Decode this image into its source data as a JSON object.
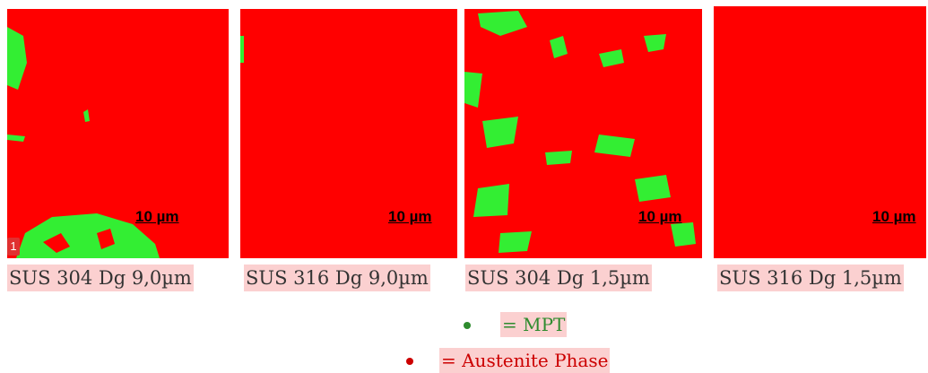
{
  "badge": "1",
  "panels": [
    {
      "scale_bar": "10 µm",
      "caption": "SUS 304 Dg 9,0µm"
    },
    {
      "scale_bar": "10 µm",
      "caption": "SUS 316 Dg 9,0µm"
    },
    {
      "scale_bar": "10 µm",
      "caption": "SUS 304 Dg 1,5µm"
    },
    {
      "scale_bar": "10 µm",
      "caption": "SUS 316 Dg 1,5µm"
    }
  ],
  "legend": [
    {
      "label": "= MPT"
    },
    {
      "label": "= Austenite Phase"
    }
  ]
}
